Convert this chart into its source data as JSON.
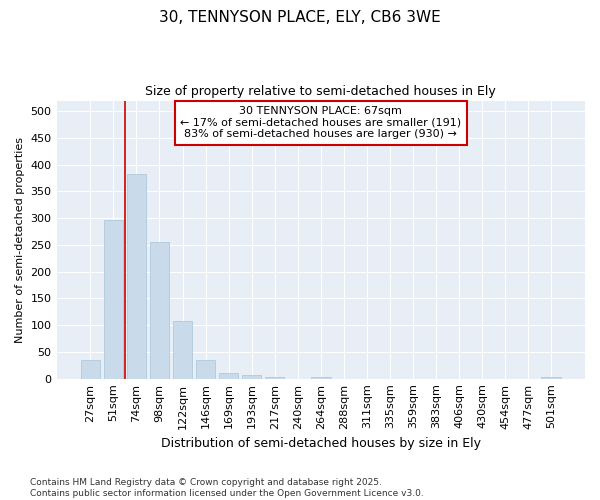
{
  "title1": "30, TENNYSON PLACE, ELY, CB6 3WE",
  "title2": "Size of property relative to semi-detached houses in Ely",
  "xlabel": "Distribution of semi-detached houses by size in Ely",
  "ylabel": "Number of semi-detached properties",
  "categories": [
    "27sqm",
    "51sqm",
    "74sqm",
    "98sqm",
    "122sqm",
    "146sqm",
    "169sqm",
    "193sqm",
    "217sqm",
    "240sqm",
    "264sqm",
    "288sqm",
    "311sqm",
    "335sqm",
    "359sqm",
    "383sqm",
    "406sqm",
    "430sqm",
    "454sqm",
    "477sqm",
    "501sqm"
  ],
  "values": [
    35,
    296,
    383,
    255,
    108,
    35,
    11,
    6,
    4,
    0,
    3,
    0,
    0,
    0,
    0,
    0,
    0,
    0,
    0,
    0,
    3
  ],
  "bar_color": "#c9daea",
  "bar_edge_color": "#a8c4d8",
  "vline_x": 1.5,
  "vline_color": "#cc0000",
  "annotation_title": "30 TENNYSON PLACE: 67sqm",
  "annotation_line1": "← 17% of semi-detached houses are smaller (191)",
  "annotation_line2": "83% of semi-detached houses are larger (930) →",
  "annotation_box_color": "#cc0000",
  "ylim": [
    0,
    520
  ],
  "yticks": [
    0,
    50,
    100,
    150,
    200,
    250,
    300,
    350,
    400,
    450,
    500
  ],
  "footnote1": "Contains HM Land Registry data © Crown copyright and database right 2025.",
  "footnote2": "Contains public sector information licensed under the Open Government Licence v3.0.",
  "bg_color": "#ffffff",
  "plot_bg_color": "#e8eef6",
  "grid_color": "#ffffff"
}
